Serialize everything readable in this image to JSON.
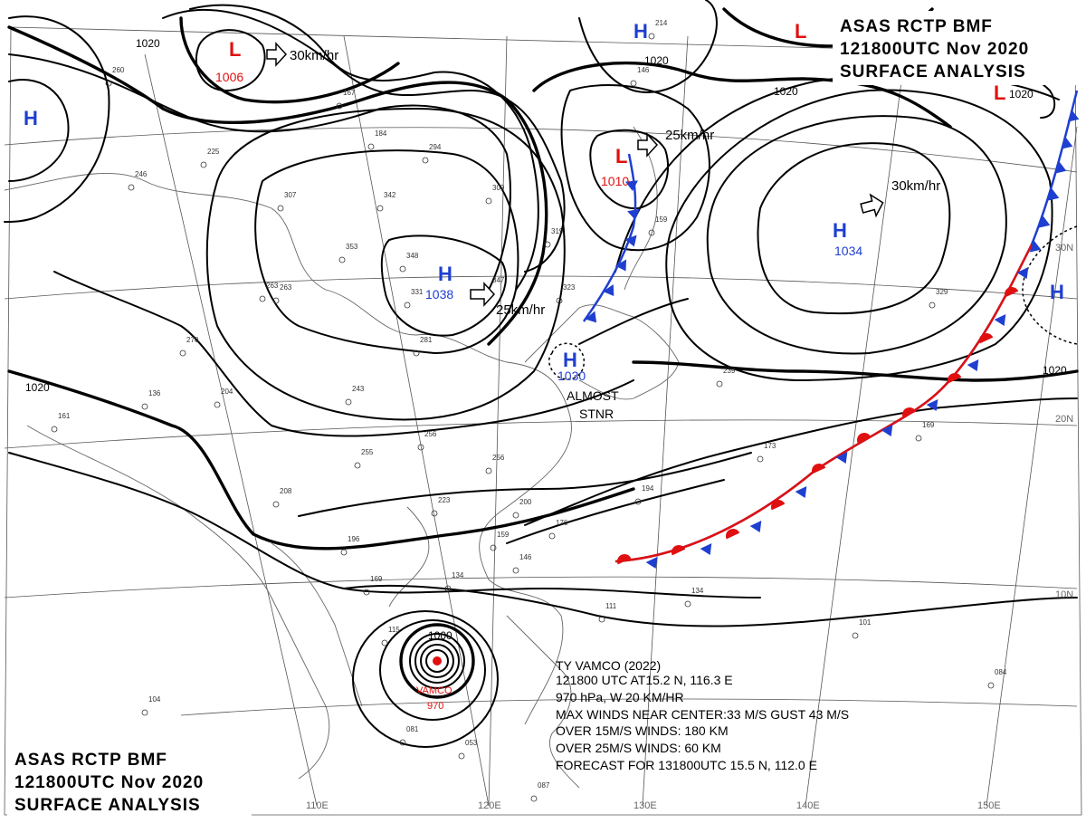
{
  "header": {
    "line1": "ASAS RCTP BMF",
    "line2": "121800UTC Nov 2020",
    "line3": "SURFACE ANALYSIS"
  },
  "isobar_labels": [
    "1020",
    "1020",
    "1020",
    "1020",
    "1020",
    "1000"
  ],
  "systems": [
    {
      "kind": "L",
      "pressure": "1006",
      "movement": "30km/hr"
    },
    {
      "kind": "L",
      "pressure": "1010",
      "movement": "25km/hr"
    },
    {
      "kind": "H",
      "pressure": "1038",
      "movement": "25km/hr"
    },
    {
      "kind": "H",
      "pressure": "1034",
      "movement": "30km/hr"
    },
    {
      "kind": "H",
      "pressure": "1030",
      "movement": ""
    },
    {
      "kind": "H",
      "pressure": "",
      "movement": ""
    },
    {
      "kind": "H",
      "pressure": "",
      "movement": ""
    },
    {
      "kind": "H",
      "pressure": "",
      "movement": ""
    },
    {
      "kind": "H",
      "pressure": "",
      "movement": ""
    },
    {
      "kind": "L",
      "pressure": "",
      "movement": ""
    },
    {
      "kind": "L",
      "pressure": "",
      "movement": ""
    }
  ],
  "warning": {
    "line1": "ALMOST",
    "line2": "STNR"
  },
  "typhoon": {
    "name": "VAMCO",
    "pressure": "970",
    "info": [
      "TY VAMCO (2022)",
      "121800 UTC AT15.2 N, 116.3 E",
      "970 hPa, W 20 KM/HR",
      "MAX WINDS NEAR CENTER:33 M/S GUST 43 M/S",
      "OVER 15M/S WINDS: 180 KM",
      "OVER 25M/S WINDS: 60 KM",
      "FORECAST FOR 131800UTC 15.5 N, 112.0 E"
    ]
  },
  "longitude_labels": [
    "110E",
    "120E",
    "130E",
    "140E",
    "150E"
  ],
  "latitude_labels": [
    "30N",
    "20N",
    "10N"
  ],
  "station_values": [
    "260",
    "246",
    "225",
    "307",
    "342",
    "294",
    "309",
    "263",
    "319",
    "323",
    "348",
    "353",
    "331",
    "281",
    "270",
    "263",
    "204",
    "136",
    "161",
    "243",
    "256",
    "255",
    "208",
    "256",
    "223",
    "200",
    "176",
    "196",
    "169",
    "159",
    "146",
    "134",
    "115",
    "104",
    "081",
    "053",
    "087",
    "111",
    "134",
    "101",
    "084",
    "173",
    "169",
    "194",
    "239",
    "159",
    "146",
    "167",
    "184",
    "214",
    "347",
    "329"
  ],
  "colors": {
    "isobar": "#000000",
    "high": "#1f3fd0",
    "low": "#e01010",
    "warm_front": "#e01010",
    "cold_front": "#1f3fd0",
    "grid": "#555555",
    "coast": "#666666"
  }
}
